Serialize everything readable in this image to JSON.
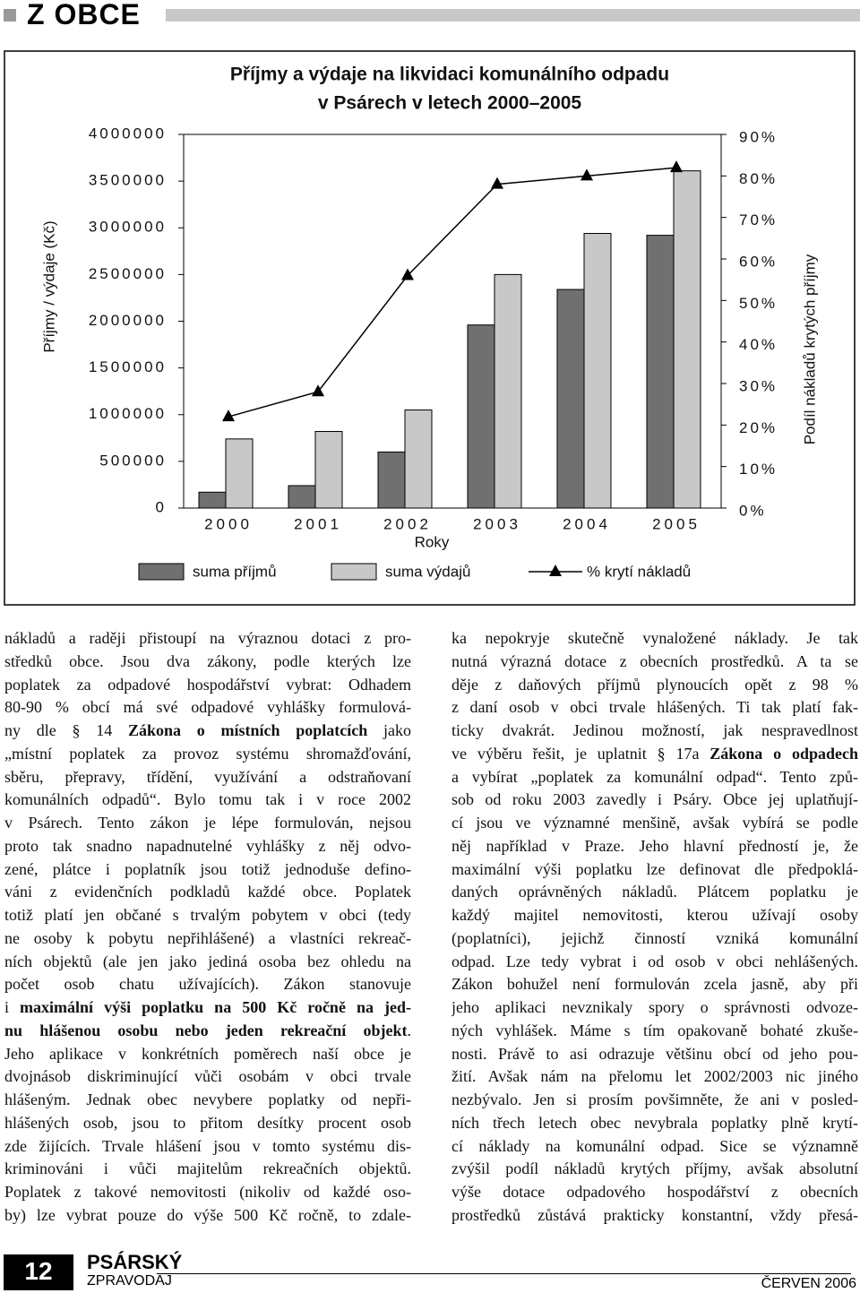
{
  "header": {
    "section": "Z OBCE"
  },
  "chart_data": {
    "type": "bar",
    "title": [
      "Příjmy a výdaje na likvidaci komunálního odpadu",
      "v Psárech v letech 2000–2005"
    ],
    "x_label": "Roky",
    "y_label": "Příjmy / výdaje (Kč)",
    "y2_label": "Podíl nákladů krytých příjmy",
    "categories": [
      "2000",
      "2001",
      "2002",
      "2003",
      "2004",
      "2005"
    ],
    "series": [
      {
        "name": "suma příjmů",
        "type": "bar",
        "color": "#707070",
        "values": [
          170000,
          240000,
          600000,
          1960000,
          2340000,
          2920000
        ]
      },
      {
        "name": "suma výdajů",
        "type": "bar",
        "color": "#c8c8c8",
        "values": [
          740000,
          820000,
          1050000,
          2500000,
          2940000,
          3610000
        ]
      },
      {
        "name": "% krytí nákladů",
        "type": "line",
        "axis": "y2",
        "color": "#000000",
        "values": [
          22,
          28,
          56,
          78,
          80,
          82
        ]
      }
    ],
    "ylim": [
      0,
      4000000
    ],
    "yticks": [
      0,
      500000,
      1000000,
      1500000,
      2000000,
      2500000,
      3000000,
      3500000,
      4000000
    ],
    "y2lim": [
      0,
      90
    ],
    "y2ticks": [
      {
        "value": 0,
        "label": "0%"
      },
      {
        "value": 10,
        "label": "10%"
      },
      {
        "value": 20,
        "label": "20%"
      },
      {
        "value": 30,
        "label": "30%"
      },
      {
        "value": 40,
        "label": "40%"
      },
      {
        "value": 50,
        "label": "50%"
      },
      {
        "value": 60,
        "label": "60%"
      },
      {
        "value": 70,
        "label": "70%"
      },
      {
        "value": 80,
        "label": "80%"
      },
      {
        "value": 90,
        "label": "90%"
      }
    ],
    "legend": "bottom",
    "grid": false
  },
  "article": {
    "columns": [
      [
        "nákladů a raději přistoupí na výraznou dotaci z pro-",
        "středků obce. Jsou dva zákony, podle kterých lze",
        "poplatek za odpadové hospodářství vybrat: Odhadem",
        "80-90 % obcí má své odpadové vyhlášky formulová-",
        [
          "ny dle § 14 ",
          {
            "text": "Zákona o místních poplatcích",
            "bold": true
          },
          " jako"
        ],
        "„místní poplatek za provoz systému shromažďování,",
        "sběru, přepravy, třídění, využívání a odstraňovaní",
        "komunálních odpadů“. Bylo tomu tak i v roce 2002",
        "v Psárech. Tento zákon je lépe formulován, nejsou",
        "proto tak snadno napadnutelné vyhlášky z něj odvo-",
        "zené, plátce i poplatník jsou totiž jednoduše defino-",
        "váni z evidenčních podkladů každé obce. Poplatek",
        "totiž platí jen občané s trvalým pobytem v obci (tedy",
        "ne osoby k pobytu nepřihlášené) a vlastníci rekreač-",
        "ních objektů (ale jen jako jediná osoba bez ohledu na",
        "počet osob chatu užívajících). Zákon stanovuje",
        [
          "i ",
          {
            "text": "maximální výši poplatku na 500 Kč ročně na jed-",
            "bold": true
          }
        ],
        [
          {
            "text": "nu hlášenou osobu nebo jeden rekreační objekt",
            "bold": true
          },
          "."
        ],
        "Jeho aplikace v konkrétních poměrech naší obce je",
        "dvojnásob diskriminující vůči osobám v obci trvale",
        "hlášeným. Jednak obec nevybere poplatky od nepři-",
        "hlášených osob, jsou to přitom desítky procent osob",
        "zde žijících. Trvale hlášení jsou v tomto systému dis-",
        "kriminováni i vůči majitelům rekreačních objektů.",
        "Poplatek z takové nemovitosti (nikoliv od každé oso-",
        "by) lze vybrat pouze do výše 500 Kč ročně, to zdale-"
      ],
      [
        "ka nepokryje skutečně vynaložené náklady. Je tak",
        "nutná výrazná dotace z obecních prostředků. A ta se",
        "děje z daňových příjmů plynoucích opět z 98 %",
        "z daní osob v obci trvale hlášených. Ti tak platí fak-",
        "ticky dvakrát. Jedinou možností, jak nespravedlnost",
        [
          "ve výběru řešit, je uplatnit § 17a ",
          {
            "text": "Zákona o odpadech",
            "bold": true
          }
        ],
        "a vybírat „poplatek za komunální odpad“. Tento způ-",
        "sob od roku 2003 zavedly i Psáry. Obce jej uplatňují-",
        "cí jsou ve významné menšině, avšak vybírá se podle",
        "něj například v Praze. Jeho hlavní předností je, že",
        "maximální výši poplatku lze definovat dle předpoklá-",
        "daných oprávněných nákladů. Plátcem poplatku je",
        "každý majitel nemovitosti, kterou užívají osoby",
        "(poplatníci), jejichž činností vzniká komunální",
        "odpad. Lze tedy vybrat i od osob v obci nehlášených.",
        "Zákon bohužel není formulován zcela jasně, aby při",
        "jeho aplikaci nevznikaly spory o správnosti odvoze-",
        "ných vyhlášek. Máme s tím opakovaně bohaté zkuše-",
        "nosti. Právě to asi odrazuje většinu obcí od jeho pou-",
        "žití. Avšak nám na přelomu let 2002/2003 nic jiného",
        "nezbývalo. Jen si prosím povšimněte, že ani v posled-",
        "ních třech letech obec nevybrala poplatky plně krytí-",
        "cí náklady na komunální odpad. Sice se významně",
        "zvýšil podíl nákladů krytých příjmy, avšak absolutní",
        "výše dotace odpadového hospodářství z obecních",
        "prostředků zůstává prakticky konstantní, vždy přesá-"
      ]
    ]
  },
  "footer": {
    "page": "12",
    "name": "PSÁRSKÝ",
    "subname": "ZPRAVODAJ",
    "date": "ČERVEN 2006"
  }
}
